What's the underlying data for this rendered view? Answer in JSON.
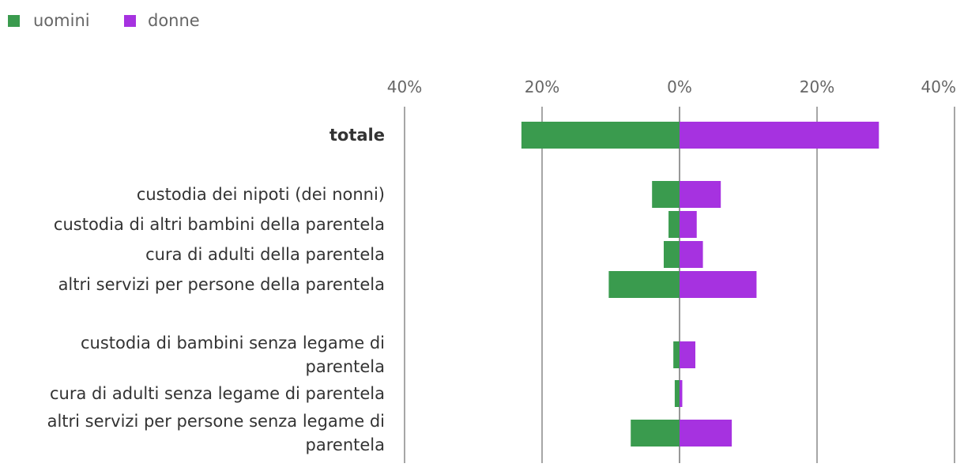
{
  "chart_data": {
    "type": "bar",
    "orientation": "horizontal-diverging",
    "legend": [
      {
        "name": "uomini",
        "color": "#3a9b4e"
      },
      {
        "name": "donne",
        "color": "#a632e0"
      }
    ],
    "x_ticks": [
      "40%",
      "20%",
      "0%",
      "20%",
      "40%"
    ],
    "xlim": [
      -40,
      40
    ],
    "categories": [
      {
        "label_lines": [
          "totale"
        ],
        "bold": true,
        "uomini": 23,
        "donne": 29
      },
      {
        "label_lines": [
          "custodia dei nipoti (dei nonni)"
        ],
        "bold": false,
        "uomini": 4,
        "donne": 6
      },
      {
        "label_lines": [
          "custodia di altri bambini della parentela"
        ],
        "bold": false,
        "uomini": 1.6,
        "donne": 2.5
      },
      {
        "label_lines": [
          "cura di adulti della parentela"
        ],
        "bold": false,
        "uomini": 2.3,
        "donne": 3.4
      },
      {
        "label_lines": [
          "altri servizi per persone della parentela"
        ],
        "bold": false,
        "uomini": 10.3,
        "donne": 11.2
      },
      {
        "label_lines": [
          "custodia di bambini senza legame di",
          "parentela"
        ],
        "bold": false,
        "uomini": 0.9,
        "donne": 2.3
      },
      {
        "label_lines": [
          "cura di adulti senza legame di parentela"
        ],
        "bold": false,
        "uomini": 0.7,
        "donne": 0.4
      },
      {
        "label_lines": [
          "altri servizi per persone senza legame di",
          "parentela"
        ],
        "bold": false,
        "uomini": 7.1,
        "donne": 7.6
      }
    ]
  }
}
